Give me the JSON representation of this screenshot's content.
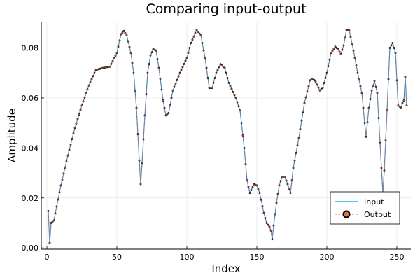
{
  "chart_data": {
    "type": "line",
    "title": "Comparing input-output",
    "xlabel": "Index",
    "ylabel": "Amplitude",
    "xlim": [
      -4,
      260
    ],
    "ylim": [
      -0.0005,
      0.0905
    ],
    "xticks": [
      0,
      50,
      100,
      150,
      200,
      250
    ],
    "yticks": [
      0.0,
      0.02,
      0.04,
      0.06,
      0.08
    ],
    "ytick_labels": [
      "0.00",
      "0.02",
      "0.04",
      "0.06",
      "0.08"
    ],
    "grid": true,
    "legend_position": "bottom-right",
    "keypoints": [
      [
        1,
        0.0148
      ],
      [
        2,
        0.002
      ],
      [
        3,
        0.01
      ],
      [
        5,
        0.011
      ],
      [
        10,
        0.025
      ],
      [
        15,
        0.037
      ],
      [
        20,
        0.048
      ],
      [
        25,
        0.057
      ],
      [
        30,
        0.065
      ],
      [
        35,
        0.0712
      ],
      [
        40,
        0.072
      ],
      [
        45,
        0.0725
      ],
      [
        50,
        0.078
      ],
      [
        53,
        0.0855
      ],
      [
        55,
        0.0868
      ],
      [
        57,
        0.085
      ],
      [
        60,
        0.078
      ],
      [
        62,
        0.07
      ],
      [
        64,
        0.056
      ],
      [
        66,
        0.035
      ],
      [
        67,
        0.0255
      ],
      [
        68,
        0.034
      ],
      [
        70,
        0.053
      ],
      [
        72,
        0.07
      ],
      [
        74,
        0.077
      ],
      [
        76,
        0.0795
      ],
      [
        78,
        0.079
      ],
      [
        80,
        0.072
      ],
      [
        83,
        0.059
      ],
      [
        85,
        0.053
      ],
      [
        87,
        0.054
      ],
      [
        90,
        0.063
      ],
      [
        95,
        0.07
      ],
      [
        100,
        0.076
      ],
      [
        103,
        0.082
      ],
      [
        107,
        0.0872
      ],
      [
        110,
        0.085
      ],
      [
        113,
        0.076
      ],
      [
        116,
        0.064
      ],
      [
        118,
        0.064
      ],
      [
        121,
        0.07
      ],
      [
        124,
        0.0735
      ],
      [
        127,
        0.072
      ],
      [
        130,
        0.066
      ],
      [
        135,
        0.06
      ],
      [
        138,
        0.055
      ],
      [
        141,
        0.04
      ],
      [
        143,
        0.027
      ],
      [
        145,
        0.022
      ],
      [
        148,
        0.0255
      ],
      [
        150,
        0.025
      ],
      [
        152,
        0.022
      ],
      [
        155,
        0.014
      ],
      [
        157,
        0.01
      ],
      [
        159,
        0.0085
      ],
      [
        160,
        0.007
      ],
      [
        161,
        0.0035
      ],
      [
        162,
        0.009
      ],
      [
        164,
        0.018
      ],
      [
        166,
        0.025
      ],
      [
        168,
        0.0285
      ],
      [
        170,
        0.0285
      ],
      [
        172,
        0.0255
      ],
      [
        174,
        0.022
      ],
      [
        176,
        0.032
      ],
      [
        180,
        0.044
      ],
      [
        184,
        0.058
      ],
      [
        188,
        0.067
      ],
      [
        190,
        0.0677
      ],
      [
        192,
        0.0665
      ],
      [
        195,
        0.063
      ],
      [
        197,
        0.064
      ],
      [
        200,
        0.07
      ],
      [
        203,
        0.078
      ],
      [
        206,
        0.0805
      ],
      [
        208,
        0.0795
      ],
      [
        210,
        0.0775
      ],
      [
        212,
        0.081
      ],
      [
        214,
        0.0872
      ],
      [
        216,
        0.087
      ],
      [
        219,
        0.079
      ],
      [
        222,
        0.07
      ],
      [
        225,
        0.062
      ],
      [
        227,
        0.05
      ],
      [
        228,
        0.0445
      ],
      [
        230,
        0.056
      ],
      [
        232,
        0.063
      ],
      [
        234,
        0.0668
      ],
      [
        236,
        0.062
      ],
      [
        238,
        0.042
      ],
      [
        240,
        0.022
      ],
      [
        241,
        0.031
      ],
      [
        243,
        0.055
      ],
      [
        245,
        0.08
      ],
      [
        247,
        0.082
      ],
      [
        249,
        0.078
      ],
      [
        250,
        0.067
      ],
      [
        251,
        0.057
      ],
      [
        253,
        0.056
      ],
      [
        254,
        0.058
      ],
      [
        255,
        0.059
      ],
      [
        256,
        0.0685
      ],
      [
        257,
        0.057
      ]
    ],
    "series": [
      {
        "name": "Input",
        "color": "#009AFA",
        "style": "solid-line"
      },
      {
        "name": "Output",
        "color": "#E26F46",
        "style": "dashed-line-with-markers"
      }
    ]
  }
}
